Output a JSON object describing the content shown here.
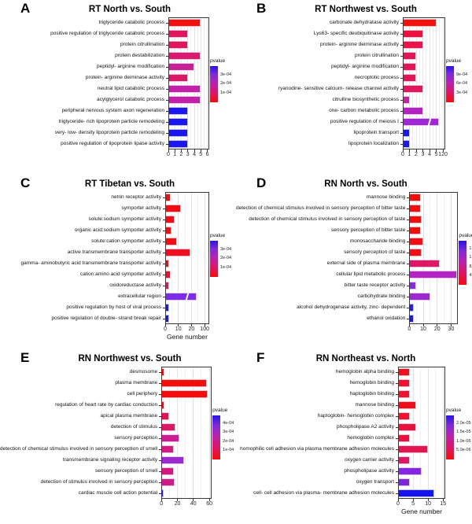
{
  "legend_title": "pvalue",
  "palette": {
    "gradient_top_blue": "#2a12e8",
    "gradient_mid_purple": "#b722b0",
    "gradient_bottom_red": "#f30d0d",
    "plot_border": "#3a3a3a",
    "gridline": "#e2e2e2"
  },
  "chart_data": [
    {
      "panel": "A",
      "type": "bar",
      "title": "RT North vs. South",
      "xlabel": "",
      "x_ticks": [
        "0",
        "1",
        "2",
        "3",
        "4",
        "5",
        "6"
      ],
      "axis_break": false,
      "legend_ticks": [
        "3e-04",
        "2e-04",
        "1e-04"
      ],
      "categories": [
        "triglyceride catabolic process",
        "positive regulation of triglyceride catabolic process",
        "protein citrullination",
        "protein destabilization",
        "peptidyl- arginine modification",
        "protein- arginine deiminase activity",
        "neutral lipid catabolic process",
        "acylglycerol catabolic process",
        "peripheral nervous system axon regeneration",
        "triglyceride- rich lipoprotein particle remodeling",
        "very- low- density lipoprotein particle remodeling",
        "positive regulation of lipoprotein lipase activity"
      ],
      "values": [
        5,
        3,
        3,
        5,
        4,
        3,
        5,
        5,
        3,
        3,
        3,
        3
      ],
      "bar_colors": [
        "#f50f0f",
        "#e0175e",
        "#e0175e",
        "#d81a71",
        "#c71f94",
        "#dc1866",
        "#c021a8",
        "#c021a8",
        "#1b17ef",
        "#1b17ef",
        "#1b17ef",
        "#1b17ef"
      ]
    },
    {
      "panel": "B",
      "type": "bar",
      "title": "RT Northwest vs. South",
      "xlabel": "",
      "x_ticks": [
        "0",
        "1",
        "2",
        "3",
        "4",
        "5",
        "120"
      ],
      "axis_break": true,
      "legend_ticks": [
        "9e-04",
        "6e-04",
        "3e-04"
      ],
      "categories": [
        "carbonate dehydratase activity",
        "Lys63- specific deubiquitinase activity",
        "protein- arginine deiminase activity",
        "protein citrullination",
        "peptidyl- arginine modification",
        "necroptotic process",
        "ryanodine- sensitive calcium- release channel activity",
        "citrulline biosynthetic process",
        "one- carbon metabolic process",
        "positive regulation of meiosis I",
        "lipoprotein transport",
        "lipoprotein localization"
      ],
      "values": [
        5,
        3,
        3,
        2,
        2,
        2,
        3,
        1,
        3,
        120,
        1,
        1
      ],
      "bar_colors": [
        "#f50f0f",
        "#ee1140",
        "#ea134b",
        "#e21657",
        "#e21657",
        "#e21657",
        "#df175f",
        "#c6209b",
        "#b124bf",
        "#a127d6",
        "#1b17ef",
        "#1b17ef"
      ]
    },
    {
      "panel": "C",
      "type": "bar",
      "title": "RT Tibetan vs. South",
      "xlabel": "Gene number",
      "x_ticks": [
        "0",
        "10",
        "20",
        "100"
      ],
      "axis_break": true,
      "legend_ticks": [
        "3e-04",
        "2e-04",
        "1e-04"
      ],
      "categories": [
        "netrin receptor activity",
        "symporter activity",
        "solute:sodium symporter activity",
        "organic acid:sodium symporter activity",
        "solute:cation symporter activity",
        "active transmembrane transporter activity",
        "gamma- aminobutyric acid transmembrane transporter activity",
        "cation:amino acid symporter activity",
        "oxidoreductase activity",
        "extracellular region",
        "positive regulation by host of viral process",
        "positive regulation of double- strand break repair"
      ],
      "values": [
        4,
        12,
        7,
        5,
        9,
        19,
        3,
        4,
        3,
        100,
        3,
        3
      ],
      "bar_colors": [
        "#f30d13",
        "#f30d13",
        "#f30d13",
        "#f30d13",
        "#f30d13",
        "#f00e20",
        "#f00e20",
        "#ee1031",
        "#e41452",
        "#7c2be8",
        "#1b17ef",
        "#1b17ef"
      ]
    },
    {
      "panel": "D",
      "type": "bar",
      "title": "RN North vs. South",
      "xlabel": "",
      "x_ticks": [
        "0",
        "10",
        "20",
        "30"
      ],
      "axis_break": false,
      "legend_ticks": [
        "1.6e-05",
        "1.2e-05",
        "8.0e-06",
        "4.0e-06"
      ],
      "categories": [
        "mannose binding",
        "detection of chemical stimulus involved in sensory perception of bitter taste",
        "detection of chemical stimulus involved in sensory perception of taste",
        "sensory perception of bitter taste",
        "monosaccharide binding",
        "sensory perception of taste",
        "external side of plasma membrane",
        "cellular lipid metabolic process",
        "bitter taste receptor activity",
        "carbohydrate binding",
        "alcohol dehydrogenase activity, zinc- dependent",
        "ethanol oxidation"
      ],
      "values": [
        8,
        8,
        9,
        8,
        10,
        9,
        22,
        34,
        5,
        15,
        3,
        3
      ],
      "bar_colors": [
        "#f30d0d",
        "#f30d0d",
        "#f30d0d",
        "#f30d0d",
        "#f10e17",
        "#f10e17",
        "#dd1765",
        "#b325c2",
        "#8a2bde",
        "#9c28d0",
        "#2a1ee0",
        "#1b17ef"
      ]
    },
    {
      "panel": "E",
      "type": "bar",
      "title": "RN Northwest vs. South",
      "xlabel": "",
      "x_ticks": [
        "0",
        "20",
        "40",
        "60"
      ],
      "axis_break": false,
      "legend_ticks": [
        "4e-04",
        "3e-04",
        "2e-04",
        "1e-04"
      ],
      "categories": [
        "desmosome",
        "plasma membrane",
        "cell periphery",
        "regulation of heart rate by cardiac conduction",
        "apical plasma membrane",
        "detection of stimulus",
        "sensory perception",
        "detection of chemical stimulus involved in sensory perception of smell",
        "transmembrane signaling receptor activity",
        "sensory perception of smell",
        "detection of stimulus involved in sensory perception",
        "cardiac muscle cell action potential"
      ],
      "values": [
        4,
        57,
        58,
        4,
        10,
        18,
        22,
        16,
        28,
        16,
        17,
        3
      ],
      "bar_colors": [
        "#f30d0d",
        "#f30d0d",
        "#f30d0d",
        "#f10e12",
        "#e31551",
        "#dc1866",
        "#cb1e92",
        "#d11b80",
        "#9a29ce",
        "#d11b80",
        "#ce1d89",
        "#1b17ef"
      ]
    },
    {
      "panel": "F",
      "type": "bar",
      "title": "RN Northeast vs. North",
      "xlabel": "Gene number",
      "x_ticks": [
        "0",
        "5",
        "10",
        "15"
      ],
      "axis_break": false,
      "legend_ticks": [
        "2.0e-05",
        "1.5e-05",
        "1.0e-05",
        "5.0e-06"
      ],
      "categories": [
        "hemoglobin alpha binding",
        "hemoglobin binding",
        "haptoglobin binding",
        "mannose binding",
        "haptoglobin- hemoglobin complex",
        "phospholipase A2 activity",
        "hemoglobin complex",
        "homophilic cell adhesion via plasma membrane adhesion molecules",
        "oxygen carrier activity",
        "phospholipase activity",
        "oxygen transport",
        "cell- cell adhesion via plasma- membrane adhesion molecules"
      ],
      "values": [
        4,
        4,
        4,
        6,
        4,
        6,
        4,
        10,
        4,
        8,
        4,
        12
      ],
      "bar_colors": [
        "#ef1022",
        "#ed1331",
        "#ed1331",
        "#f00e1c",
        "#ed1331",
        "#e9123e",
        "#e9123e",
        "#e41450",
        "#de1765",
        "#8625e2",
        "#7b27dc",
        "#1414f0"
      ]
    }
  ]
}
